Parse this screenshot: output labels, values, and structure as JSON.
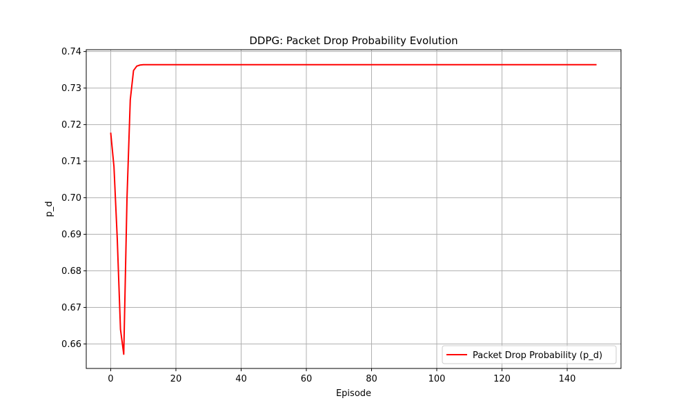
{
  "chart_data": {
    "type": "line",
    "title": "DDPG: Packet Drop Probability Evolution",
    "xlabel": "Episode",
    "ylabel": "p_d",
    "xlim": [
      -7.5,
      156.5
    ],
    "ylim": [
      0.6533,
      0.7405
    ],
    "xticks": [
      0,
      20,
      40,
      60,
      80,
      100,
      120,
      140
    ],
    "xtick_labels": [
      "0",
      "20",
      "40",
      "60",
      "80",
      "100",
      "120",
      "140"
    ],
    "yticks": [
      0.66,
      0.67,
      0.68,
      0.69,
      0.7,
      0.71,
      0.72,
      0.73,
      0.74
    ],
    "ytick_labels": [
      "0.66",
      "0.67",
      "0.68",
      "0.69",
      "0.70",
      "0.71",
      "0.72",
      "0.73",
      "0.74"
    ],
    "grid": true,
    "legend_position": "lower-right",
    "series": [
      {
        "name": "Packet Drop Probability (p_d)",
        "color": "#ff0000",
        "x": [
          0,
          1,
          2,
          3,
          4,
          5,
          6,
          7,
          8,
          9,
          10,
          11,
          12,
          149
        ],
        "y": [
          0.7178,
          0.7085,
          0.689,
          0.664,
          0.6572,
          0.7,
          0.7268,
          0.7348,
          0.736,
          0.7363,
          0.7364,
          0.7364,
          0.7364,
          0.7364
        ]
      }
    ]
  }
}
